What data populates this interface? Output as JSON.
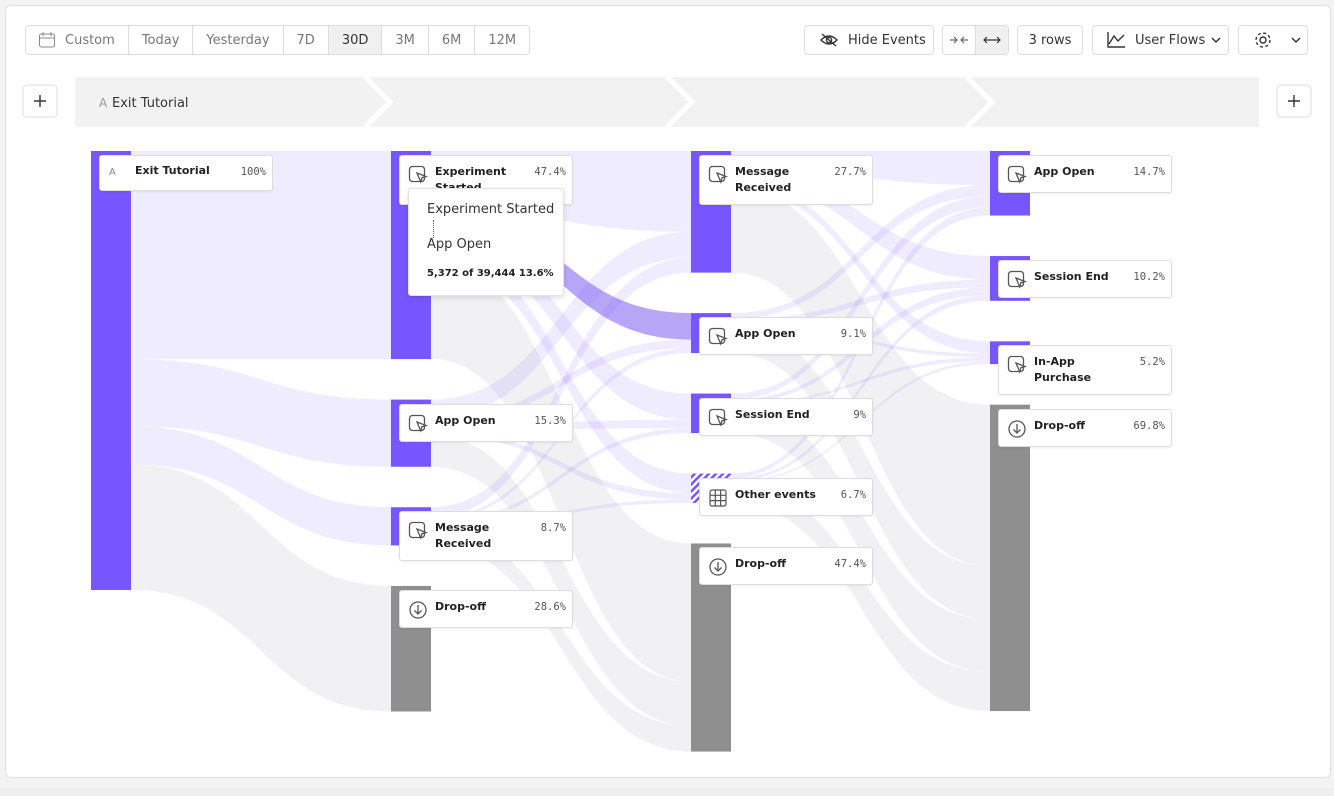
{
  "toolbar": {
    "date_ranges": [
      "Custom",
      "Today",
      "Yesterday",
      "7D",
      "30D",
      "3M",
      "6M",
      "12M"
    ],
    "hide_events": "Hide Events",
    "rows": "3 rows",
    "view": "User Flows"
  },
  "steps": [
    {
      "letter": "A",
      "label": "Exit Tutorial"
    }
  ],
  "columns": [
    {
      "nodes": [
        {
          "letter": "A",
          "name": "Exit Tutorial",
          "value": 100,
          "label": "100%"
        }
      ]
    },
    {
      "nodes": [
        {
          "name": "Experiment Started",
          "value": 47.4,
          "label": "47.4%"
        },
        {
          "name": "App Open",
          "value": 15.3,
          "label": "15.3%"
        },
        {
          "name": "Message Received",
          "value": 8.7,
          "label": "8.7%"
        },
        {
          "name": "Drop-off",
          "value": 28.6,
          "label": "28.6%"
        }
      ]
    },
    {
      "nodes": [
        {
          "name": "Message Received",
          "value": 27.7,
          "label": "27.7%"
        },
        {
          "name": "App Open",
          "value": 9.1,
          "label": "9.1%"
        },
        {
          "name": "Session End",
          "value": 9,
          "label": "9%"
        },
        {
          "name": "Other events",
          "value": 6.7,
          "label": "6.7%"
        },
        {
          "name": "Drop-off",
          "value": 47.4,
          "label": "47.4%"
        }
      ]
    },
    {
      "nodes": [
        {
          "name": "App Open",
          "value": 14.7,
          "label": "14.7%"
        },
        {
          "name": "Session End",
          "value": 10.2,
          "label": "10.2%"
        },
        {
          "name": "In-App Purchase",
          "value": 5.2,
          "label": "5.2%"
        },
        {
          "name": "Drop-off",
          "value": 69.8,
          "label": "69.8%"
        }
      ]
    }
  ],
  "tooltip": {
    "from": "Experiment Started",
    "to": "App Open",
    "detail": "5,372 of 39,444 13.6%"
  }
}
